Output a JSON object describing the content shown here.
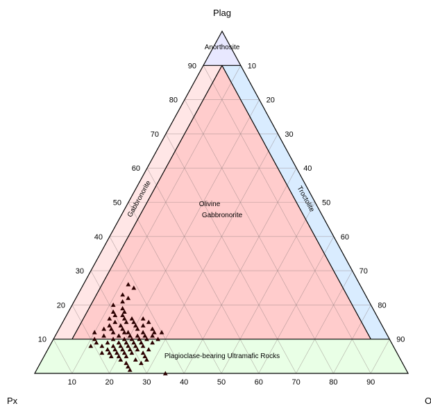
{
  "chart_data": {
    "type": "scatter",
    "subtype": "ternary",
    "vertices": {
      "top": "Plag",
      "left": "Px",
      "right": "Ol"
    },
    "ticks": [
      10,
      20,
      30,
      40,
      50,
      60,
      70,
      80,
      90
    ],
    "grid": true,
    "fields": [
      {
        "name": "Anorthosite",
        "color": "#e8e8ff"
      },
      {
        "name": "Gabbronorite",
        "color": "#ffe6e6"
      },
      {
        "name": "Troctolite",
        "color": "#d9ecff"
      },
      {
        "name": "Olivine Gabbronorite",
        "color": "#ffcccc"
      },
      {
        "name": "Plagioclase-bearing Ultramafic Rocks",
        "color": "#e9ffe6"
      }
    ],
    "field_label_lines": {
      "anorthosite": "Anorthosite",
      "gabbronorite": "Gabbronorite",
      "troctolite": "Troctolite",
      "ol_gabbronorite_1": "Olivine",
      "ol_gabbronorite_2": "Gabbronorite",
      "ultramafic": "Plagioclase-bearing Ultramafic Rocks"
    },
    "marker": {
      "shape": "triangle",
      "color": "#2b0000"
    },
    "points": [
      {
        "plag": 26,
        "ol": 12,
        "px": 62
      },
      {
        "plag": 25,
        "ol": 14,
        "px": 61
      },
      {
        "plag": 23,
        "ol": 12,
        "px": 65
      },
      {
        "plag": 22,
        "ol": 14,
        "px": 64
      },
      {
        "plag": 21,
        "ol": 13,
        "px": 66
      },
      {
        "plag": 20,
        "ol": 11,
        "px": 69
      },
      {
        "plag": 19,
        "ol": 14,
        "px": 67
      },
      {
        "plag": 18,
        "ol": 12,
        "px": 70
      },
      {
        "plag": 18,
        "ol": 15,
        "px": 67
      },
      {
        "plag": 17,
        "ol": 15,
        "px": 68
      },
      {
        "plag": 17,
        "ol": 13,
        "px": 70
      },
      {
        "plag": 16,
        "ol": 18,
        "px": 66
      },
      {
        "plag": 16,
        "ol": 12,
        "px": 72
      },
      {
        "plag": 16,
        "ol": 16,
        "px": 68
      },
      {
        "plag": 15,
        "ol": 14,
        "px": 71
      },
      {
        "plag": 15,
        "ol": 17,
        "px": 68
      },
      {
        "plag": 15,
        "ol": 19,
        "px": 66
      },
      {
        "plag": 14,
        "ol": 22,
        "px": 64
      },
      {
        "plag": 14,
        "ol": 13,
        "px": 73
      },
      {
        "plag": 14,
        "ol": 16,
        "px": 70
      },
      {
        "plag": 14,
        "ol": 20,
        "px": 66
      },
      {
        "plag": 13,
        "ol": 17,
        "px": 70
      },
      {
        "plag": 13,
        "ol": 21,
        "px": 66
      },
      {
        "plag": 13,
        "ol": 12,
        "px": 75
      },
      {
        "plag": 13,
        "ol": 14,
        "px": 73
      },
      {
        "plag": 12,
        "ol": 19,
        "px": 69
      },
      {
        "plag": 12,
        "ol": 23,
        "px": 65
      },
      {
        "plag": 12,
        "ol": 26,
        "px": 62
      },
      {
        "plag": 12,
        "ol": 15,
        "px": 73
      },
      {
        "plag": 12,
        "ol": 18,
        "px": 70
      },
      {
        "plag": 11,
        "ol": 20,
        "px": 69
      },
      {
        "plag": 11,
        "ol": 22,
        "px": 67
      },
      {
        "plag": 11,
        "ol": 17,
        "px": 72
      },
      {
        "plag": 11,
        "ol": 24,
        "px": 65
      },
      {
        "plag": 11,
        "ol": 13,
        "px": 76
      },
      {
        "plag": 10,
        "ol": 19,
        "px": 71
      },
      {
        "plag": 10,
        "ol": 23,
        "px": 67
      },
      {
        "plag": 10,
        "ol": 16,
        "px": 74
      },
      {
        "plag": 10,
        "ol": 21,
        "px": 69
      },
      {
        "plag": 10,
        "ol": 25,
        "px": 65
      },
      {
        "plag": 9,
        "ol": 18,
        "px": 73
      },
      {
        "plag": 9,
        "ol": 20,
        "px": 71
      },
      {
        "plag": 9,
        "ol": 22,
        "px": 69
      },
      {
        "plag": 9,
        "ol": 24,
        "px": 67
      },
      {
        "plag": 9,
        "ol": 15,
        "px": 76
      },
      {
        "plag": 8,
        "ol": 19,
        "px": 73
      },
      {
        "plag": 8,
        "ol": 21,
        "px": 71
      },
      {
        "plag": 8,
        "ol": 17,
        "px": 75
      },
      {
        "plag": 8,
        "ol": 23,
        "px": 69
      },
      {
        "plag": 8,
        "ol": 25,
        "px": 67
      },
      {
        "plag": 8,
        "ol": 14,
        "px": 78
      },
      {
        "plag": 7,
        "ol": 18,
        "px": 75
      },
      {
        "plag": 7,
        "ol": 20,
        "px": 73
      },
      {
        "plag": 7,
        "ol": 22,
        "px": 71
      },
      {
        "plag": 7,
        "ol": 16,
        "px": 77
      },
      {
        "plag": 7,
        "ol": 24,
        "px": 69
      },
      {
        "plag": 6,
        "ol": 19,
        "px": 75
      },
      {
        "plag": 6,
        "ol": 21,
        "px": 73
      },
      {
        "plag": 6,
        "ol": 23,
        "px": 71
      },
      {
        "plag": 6,
        "ol": 17,
        "px": 77
      },
      {
        "plag": 6,
        "ol": 15,
        "px": 79
      },
      {
        "plag": 5,
        "ol": 20,
        "px": 75
      },
      {
        "plag": 5,
        "ol": 22,
        "px": 73
      },
      {
        "plag": 5,
        "ol": 18,
        "px": 77
      },
      {
        "plag": 4,
        "ol": 21,
        "px": 75
      },
      {
        "plag": 4,
        "ol": 25,
        "px": 71
      },
      {
        "plag": 3,
        "ol": 27,
        "px": 70
      },
      {
        "plag": 3,
        "ol": 23,
        "px": 74
      },
      {
        "plag": 2,
        "ol": 24,
        "px": 74
      },
      {
        "plag": 1,
        "ol": 25,
        "px": 74
      },
      {
        "plag": 0,
        "ol": 35,
        "px": 65
      },
      {
        "plag": 16,
        "ol": 21,
        "px": 63
      },
      {
        "plag": 15,
        "ol": 23,
        "px": 62
      },
      {
        "plag": 12,
        "ol": 28,
        "px": 60
      },
      {
        "plag": 10,
        "ol": 28,
        "px": 62
      },
      {
        "plag": 9,
        "ol": 27,
        "px": 64
      },
      {
        "plag": 7,
        "ol": 27,
        "px": 66
      },
      {
        "plag": 6,
        "ol": 26,
        "px": 68
      },
      {
        "plag": 5,
        "ol": 27,
        "px": 68
      },
      {
        "plag": 4,
        "ol": 28,
        "px": 68
      },
      {
        "plag": 8,
        "ol": 11,
        "px": 81
      },
      {
        "plag": 10,
        "ol": 11,
        "px": 79
      },
      {
        "plag": 12,
        "ol": 10,
        "px": 78
      },
      {
        "plag": 9,
        "ol": 12,
        "px": 79
      },
      {
        "plag": 11,
        "ol": 26,
        "px": 63
      },
      {
        "plag": 13,
        "ol": 25,
        "px": 62
      }
    ]
  }
}
